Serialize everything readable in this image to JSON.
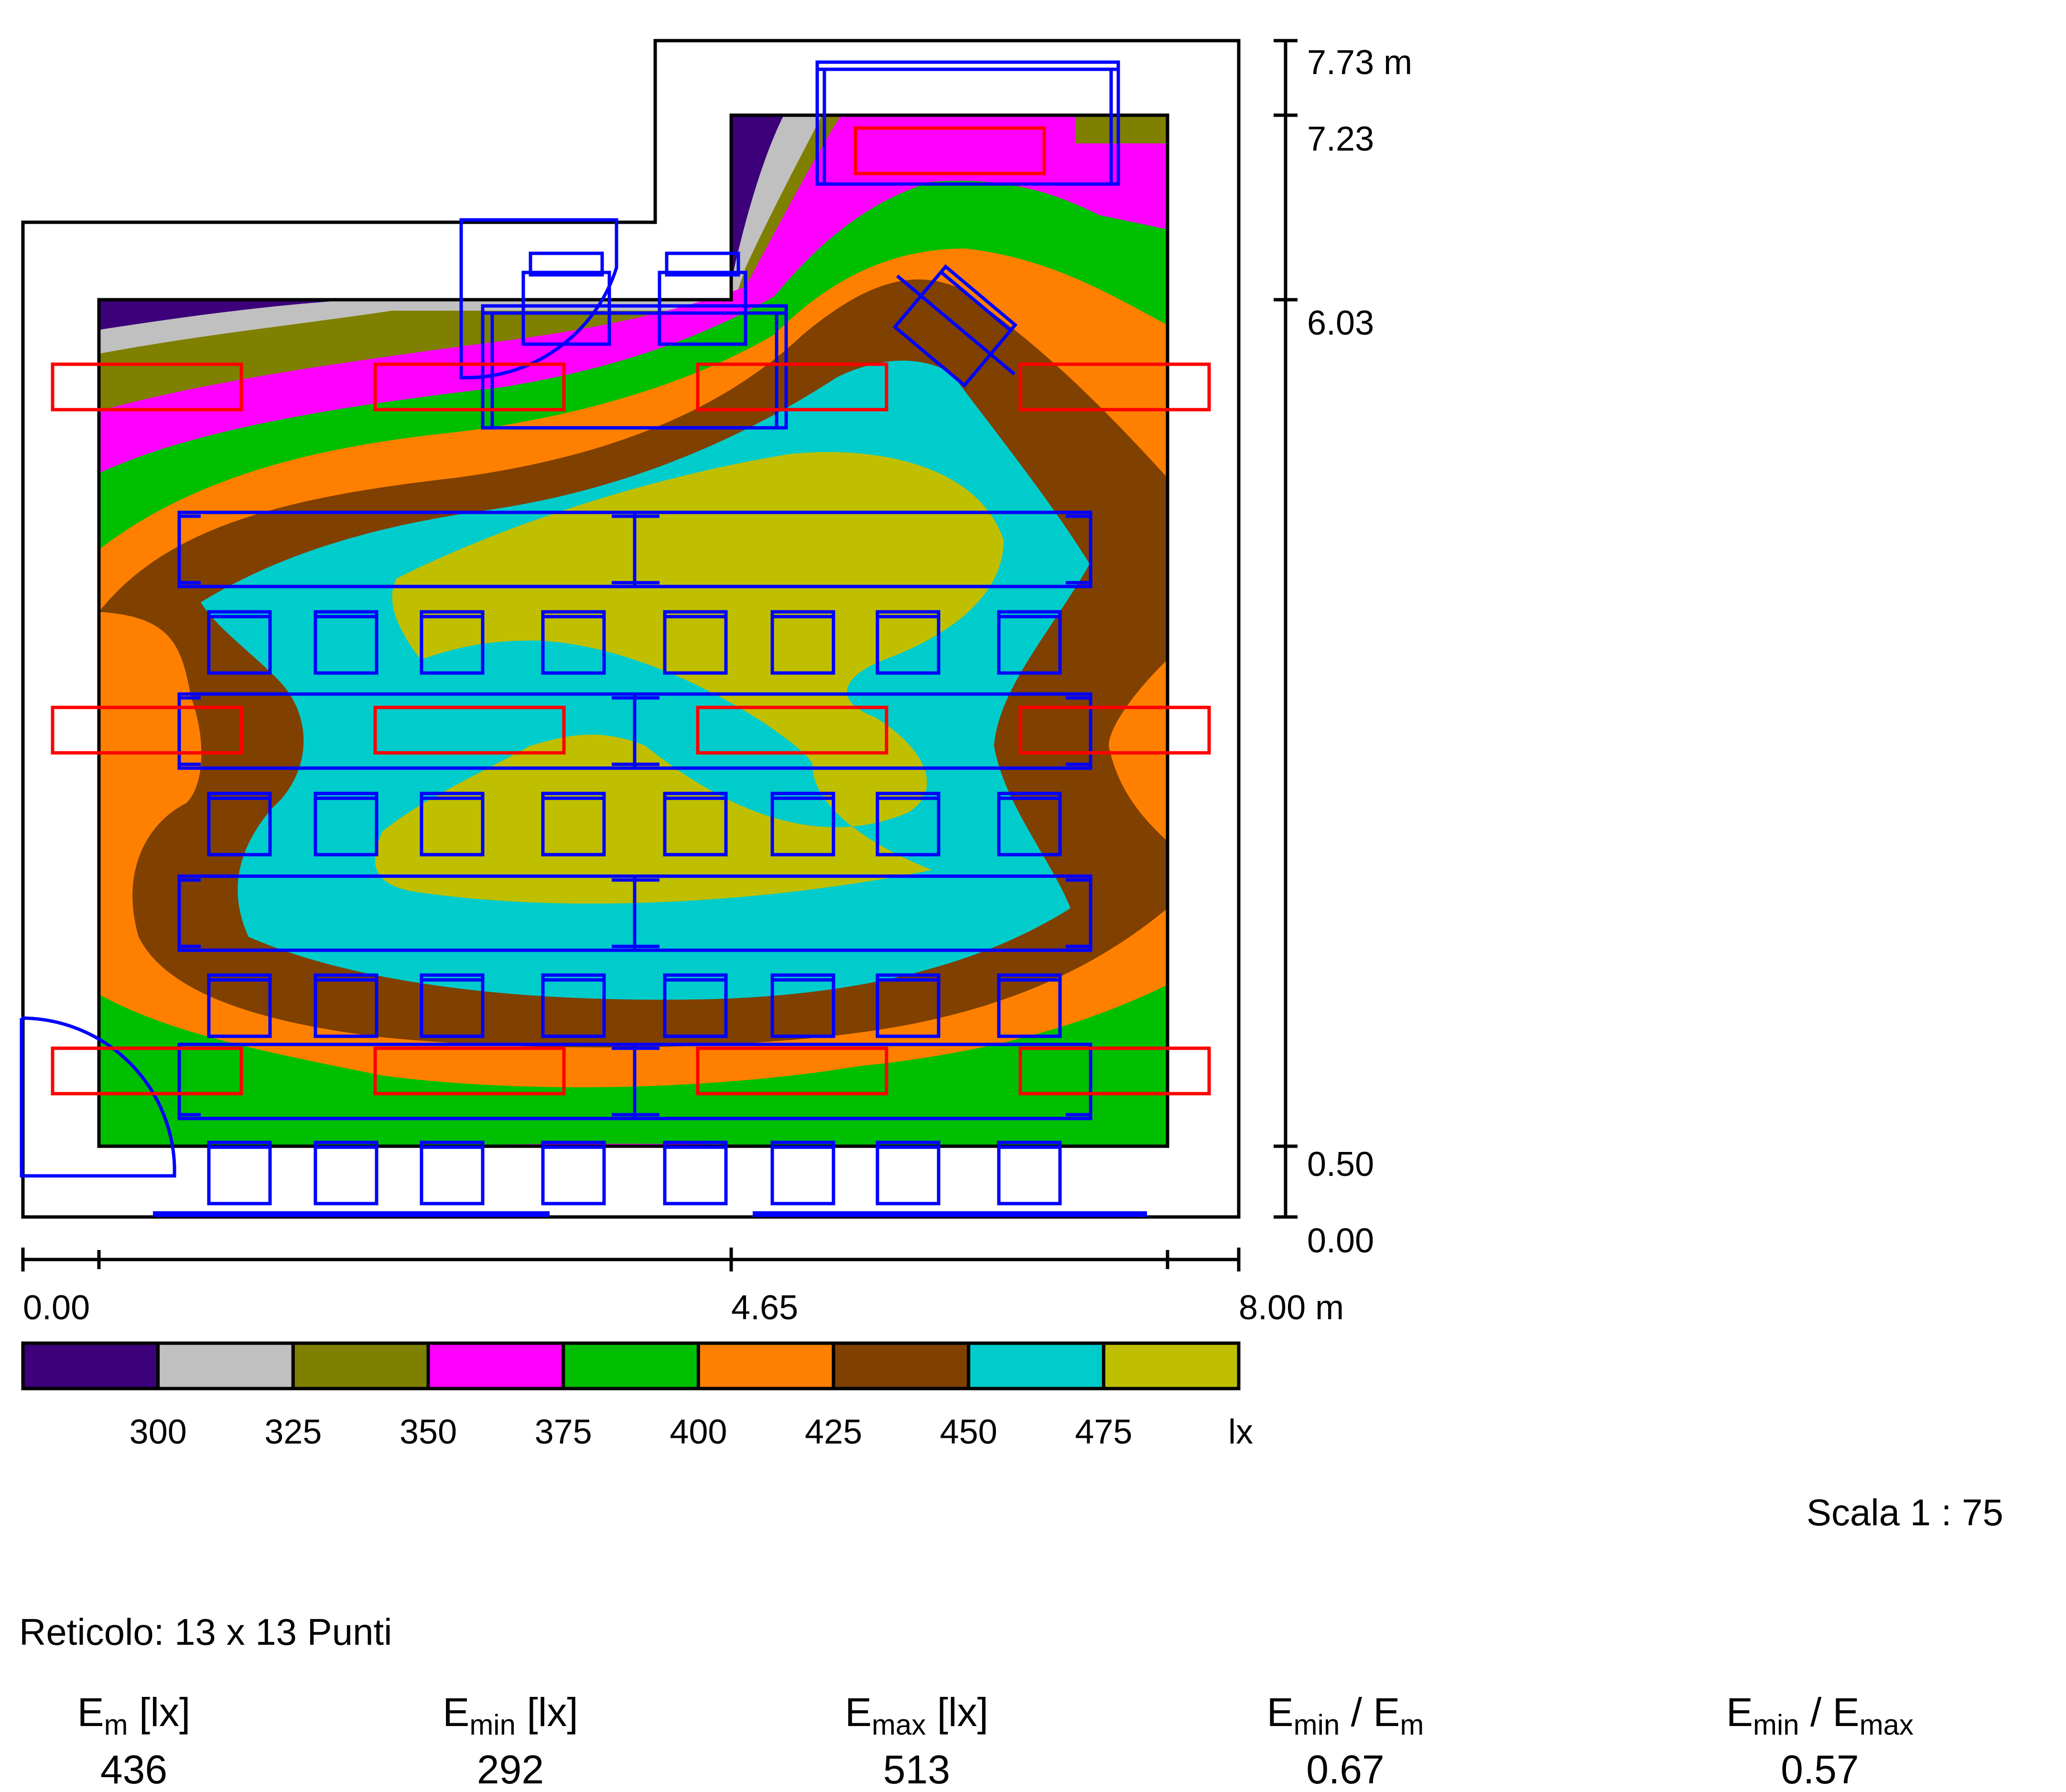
{
  "axis": {
    "x_ticks": [
      "0.00",
      "4.65",
      "8.00 m"
    ],
    "y_ticks": [
      "7.73 m",
      "7.23",
      "6.03",
      "0.50",
      "0.00"
    ]
  },
  "legend": {
    "colors": [
      "#3c007a",
      "#c0c0c0",
      "#7f7f00",
      "#ff00ff",
      "#00bf00",
      "#ff8000",
      "#804000",
      "#00cccc",
      "#bfbf00"
    ],
    "values": [
      "300",
      "325",
      "350",
      "375",
      "400",
      "425",
      "450",
      "475"
    ],
    "unit": "lx"
  },
  "scale": "Scala 1 : 75",
  "grid_info": "Reticolo: 13 x 13 Punti",
  "stats": [
    {
      "base": "E",
      "sub": "m",
      "tail": " [lx]",
      "value": "436"
    },
    {
      "base": "E",
      "sub": "min",
      "tail": " [lx]",
      "value": "292"
    },
    {
      "base": "E",
      "sub": "max",
      "tail": " [lx]",
      "value": "513"
    },
    {
      "base": "E",
      "sub": "min",
      "mid": " / E",
      "sub2": "m",
      "value": "0.67"
    },
    {
      "base": "E",
      "sub": "min",
      "mid": " / E",
      "sub2": "max",
      "value": "0.57"
    }
  ]
}
